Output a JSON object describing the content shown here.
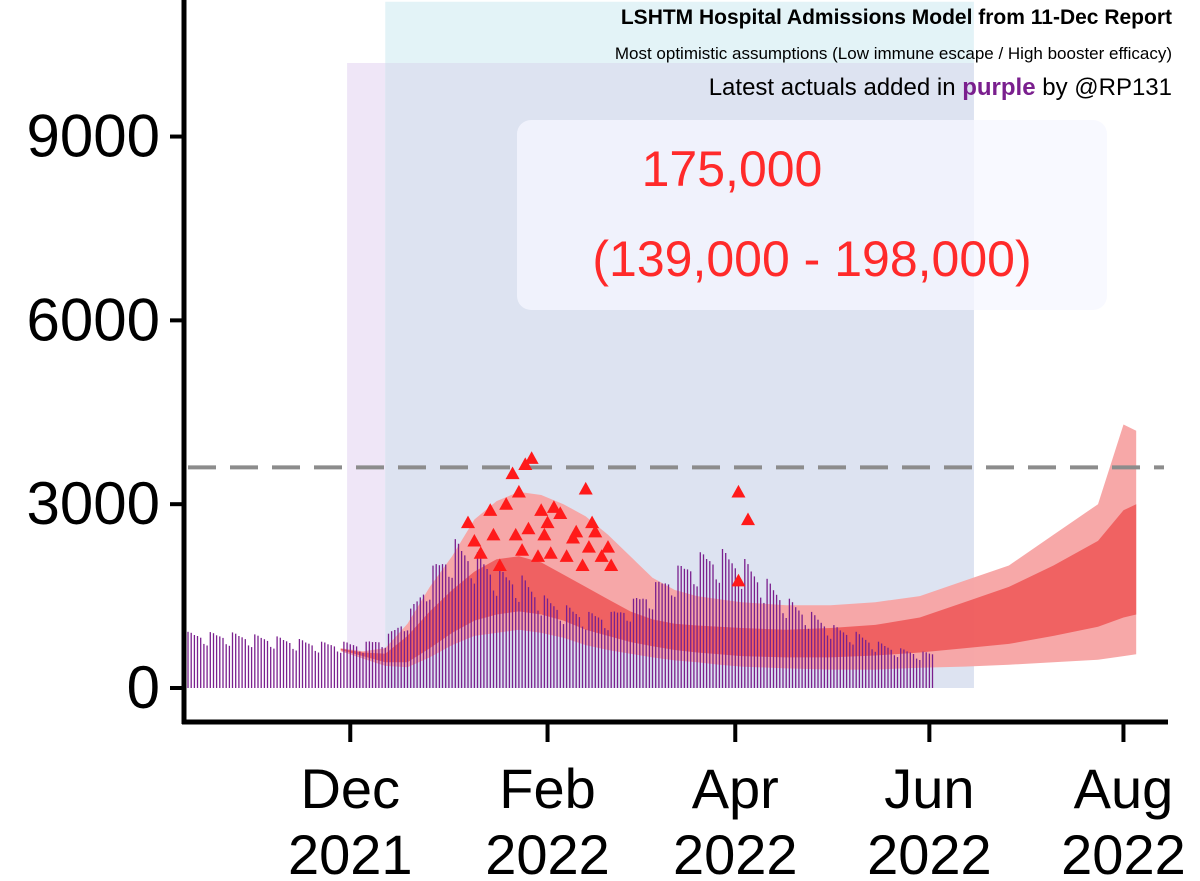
{
  "header": {
    "title": "LSHTM Hospital Admissions Model from 11-Dec Report",
    "subtitle": "Most optimistic assumptions (Low immune escape / High booster efficacy)",
    "note_prefix": "Latest actuals added in",
    "note_highlight": "purple",
    "note_suffix": "by @RP131"
  },
  "annotation": {
    "total": "175,000",
    "range": "(139,000 - 198,000)"
  },
  "colors": {
    "actuals": "#7a1f8e",
    "model_outer": "#f7a3a3",
    "model_inner": "#ee5a5a",
    "triangles": "#ff1a1a",
    "annotation_text": "#ff2a2a",
    "reference_line": "#8c8c8c",
    "band_purple": "#efe6f7",
    "band_cyan": "#e3f3f7",
    "band_blue": "#dde3f1"
  },
  "chart_data": {
    "type": "line",
    "title": "LSHTM Hospital Admissions Model from 11-Dec Report",
    "xlabel": "",
    "ylabel": "",
    "ylim": [
      0,
      11000
    ],
    "y_ticks": [
      0,
      3000,
      6000,
      9000
    ],
    "y_tick_labels": [
      "0",
      "3000",
      "6000",
      "9000"
    ],
    "x_range": [
      "2021-10-11",
      "2022-08-15"
    ],
    "x_ticks": [
      {
        "date": "2021-12-01",
        "label_top": "Dec",
        "label_bottom": "2021"
      },
      {
        "date": "2022-02-01",
        "label_top": "Feb",
        "label_bottom": "2022"
      },
      {
        "date": "2022-04-01",
        "label_top": "Apr",
        "label_bottom": "2022"
      },
      {
        "date": "2022-06-01",
        "label_top": "Jun",
        "label_bottom": "2022"
      },
      {
        "date": "2022-08-01",
        "label_top": "Aug",
        "label_bottom": "2022"
      }
    ],
    "reference_line": 3600,
    "shaded_periods": [
      {
        "start": "2021-11-30",
        "end": "2022-06-15",
        "ymax": 10200,
        "color_key": "band_purple"
      },
      {
        "start": "2021-12-12",
        "end": "2022-06-15",
        "ymax": 11200,
        "color_key": "band_cyan"
      },
      {
        "start": "2021-12-12",
        "end": "2022-06-15",
        "ymax": 10200,
        "color_key": "band_blue"
      }
    ],
    "series": [
      {
        "kind": "bars",
        "x": [
          "2021-10-11",
          "2021-10-25",
          "2021-11-08",
          "2021-11-22",
          "2021-12-06",
          "2021-12-13",
          "2021-12-20",
          "2021-12-27",
          "2022-01-03",
          "2022-01-10",
          "2022-01-17",
          "2022-01-24",
          "2022-01-31",
          "2022-02-07",
          "2022-02-14",
          "2022-02-21",
          "2022-02-28",
          "2022-03-07",
          "2022-03-14",
          "2022-03-21",
          "2022-03-28",
          "2022-04-04",
          "2022-04-11",
          "2022-04-18",
          "2022-04-25",
          "2022-05-02",
          "2022-05-09",
          "2022-05-16",
          "2022-05-23",
          "2022-05-30"
        ],
        "values": [
          850,
          840,
          780,
          700,
          700,
          820,
          1200,
          1850,
          2250,
          2050,
          1800,
          1700,
          1400,
          1250,
          1150,
          1150,
          1350,
          1600,
          1850,
          2050,
          2100,
          1950,
          1650,
          1350,
          1150,
          950,
          850,
          700,
          600,
          550
        ]
      },
      {
        "kind": "band_outer",
        "x": [
          "2021-11-28",
          "2021-12-05",
          "2021-12-12",
          "2021-12-19",
          "2021-12-26",
          "2022-01-02",
          "2022-01-09",
          "2022-01-16",
          "2022-01-23",
          "2022-01-30",
          "2022-02-06",
          "2022-02-13",
          "2022-02-20",
          "2022-02-27",
          "2022-03-06",
          "2022-03-13",
          "2022-03-20",
          "2022-03-27",
          "2022-04-03",
          "2022-04-17",
          "2022-05-01",
          "2022-05-15",
          "2022-05-29",
          "2022-06-12",
          "2022-06-26",
          "2022-07-10",
          "2022-07-24",
          "2022-08-01",
          "2022-08-05"
        ],
        "lower": [
          600,
          480,
          360,
          340,
          500,
          700,
          850,
          900,
          950,
          900,
          820,
          700,
          620,
          560,
          500,
          450,
          420,
          380,
          350,
          320,
          300,
          300,
          330,
          350,
          380,
          420,
          460,
          520,
          550
        ],
        "upper": [
          650,
          600,
          650,
          1050,
          1650,
          2150,
          2750,
          3050,
          3200,
          3150,
          3000,
          2800,
          2500,
          2150,
          1800,
          1600,
          1500,
          1450,
          1400,
          1350,
          1350,
          1400,
          1500,
          1750,
          2000,
          2500,
          3000,
          4300,
          4200
        ]
      },
      {
        "kind": "band_inner",
        "x": [
          "2021-11-28",
          "2021-12-05",
          "2021-12-12",
          "2021-12-19",
          "2021-12-26",
          "2022-01-02",
          "2022-01-09",
          "2022-01-16",
          "2022-01-23",
          "2022-01-30",
          "2022-02-06",
          "2022-02-13",
          "2022-02-20",
          "2022-02-27",
          "2022-03-06",
          "2022-03-13",
          "2022-03-20",
          "2022-03-27",
          "2022-04-03",
          "2022-04-17",
          "2022-05-01",
          "2022-05-15",
          "2022-05-29",
          "2022-06-12",
          "2022-06-26",
          "2022-07-10",
          "2022-07-24",
          "2022-08-01",
          "2022-08-05"
        ],
        "lower": [
          620,
          520,
          420,
          420,
          650,
          900,
          1100,
          1200,
          1250,
          1200,
          1100,
          950,
          850,
          750,
          680,
          620,
          580,
          550,
          520,
          500,
          500,
          530,
          580,
          650,
          720,
          850,
          1000,
          1150,
          1200
        ],
        "upper": [
          640,
          580,
          560,
          850,
          1250,
          1600,
          1900,
          2100,
          2150,
          2050,
          1850,
          1650,
          1450,
          1250,
          1120,
          1050,
          1020,
          1000,
          980,
          950,
          980,
          1030,
          1150,
          1400,
          1650,
          2000,
          2400,
          2900,
          3000
        ]
      },
      {
        "kind": "triangles",
        "points": [
          {
            "x": "2022-01-07",
            "y": 2700
          },
          {
            "x": "2022-01-09",
            "y": 2400
          },
          {
            "x": "2022-01-11",
            "y": 2200
          },
          {
            "x": "2022-01-14",
            "y": 2900
          },
          {
            "x": "2022-01-15",
            "y": 2500
          },
          {
            "x": "2022-01-17",
            "y": 2000
          },
          {
            "x": "2022-01-19",
            "y": 3000
          },
          {
            "x": "2022-01-21",
            "y": 3500
          },
          {
            "x": "2022-01-22",
            "y": 2500
          },
          {
            "x": "2022-01-23",
            "y": 3200
          },
          {
            "x": "2022-01-24",
            "y": 2250
          },
          {
            "x": "2022-01-25",
            "y": 3650
          },
          {
            "x": "2022-01-26",
            "y": 2600
          },
          {
            "x": "2022-01-27",
            "y": 3750
          },
          {
            "x": "2022-01-29",
            "y": 2150
          },
          {
            "x": "2022-01-30",
            "y": 2900
          },
          {
            "x": "2022-01-31",
            "y": 2500
          },
          {
            "x": "2022-02-01",
            "y": 2700
          },
          {
            "x": "2022-02-02",
            "y": 2200
          },
          {
            "x": "2022-02-03",
            "y": 2950
          },
          {
            "x": "2022-02-05",
            "y": 2850
          },
          {
            "x": "2022-02-07",
            "y": 2150
          },
          {
            "x": "2022-02-09",
            "y": 2450
          },
          {
            "x": "2022-02-10",
            "y": 2550
          },
          {
            "x": "2022-02-12",
            "y": 2000
          },
          {
            "x": "2022-02-13",
            "y": 3250
          },
          {
            "x": "2022-02-14",
            "y": 2300
          },
          {
            "x": "2022-02-15",
            "y": 2700
          },
          {
            "x": "2022-02-16",
            "y": 2550
          },
          {
            "x": "2022-02-18",
            "y": 2150
          },
          {
            "x": "2022-02-20",
            "y": 2300
          },
          {
            "x": "2022-02-21",
            "y": 2000
          },
          {
            "x": "2022-04-02",
            "y": 3200
          },
          {
            "x": "2022-04-05",
            "y": 2750
          },
          {
            "x": "2022-04-02",
            "y": 1750
          }
        ]
      }
    ]
  }
}
